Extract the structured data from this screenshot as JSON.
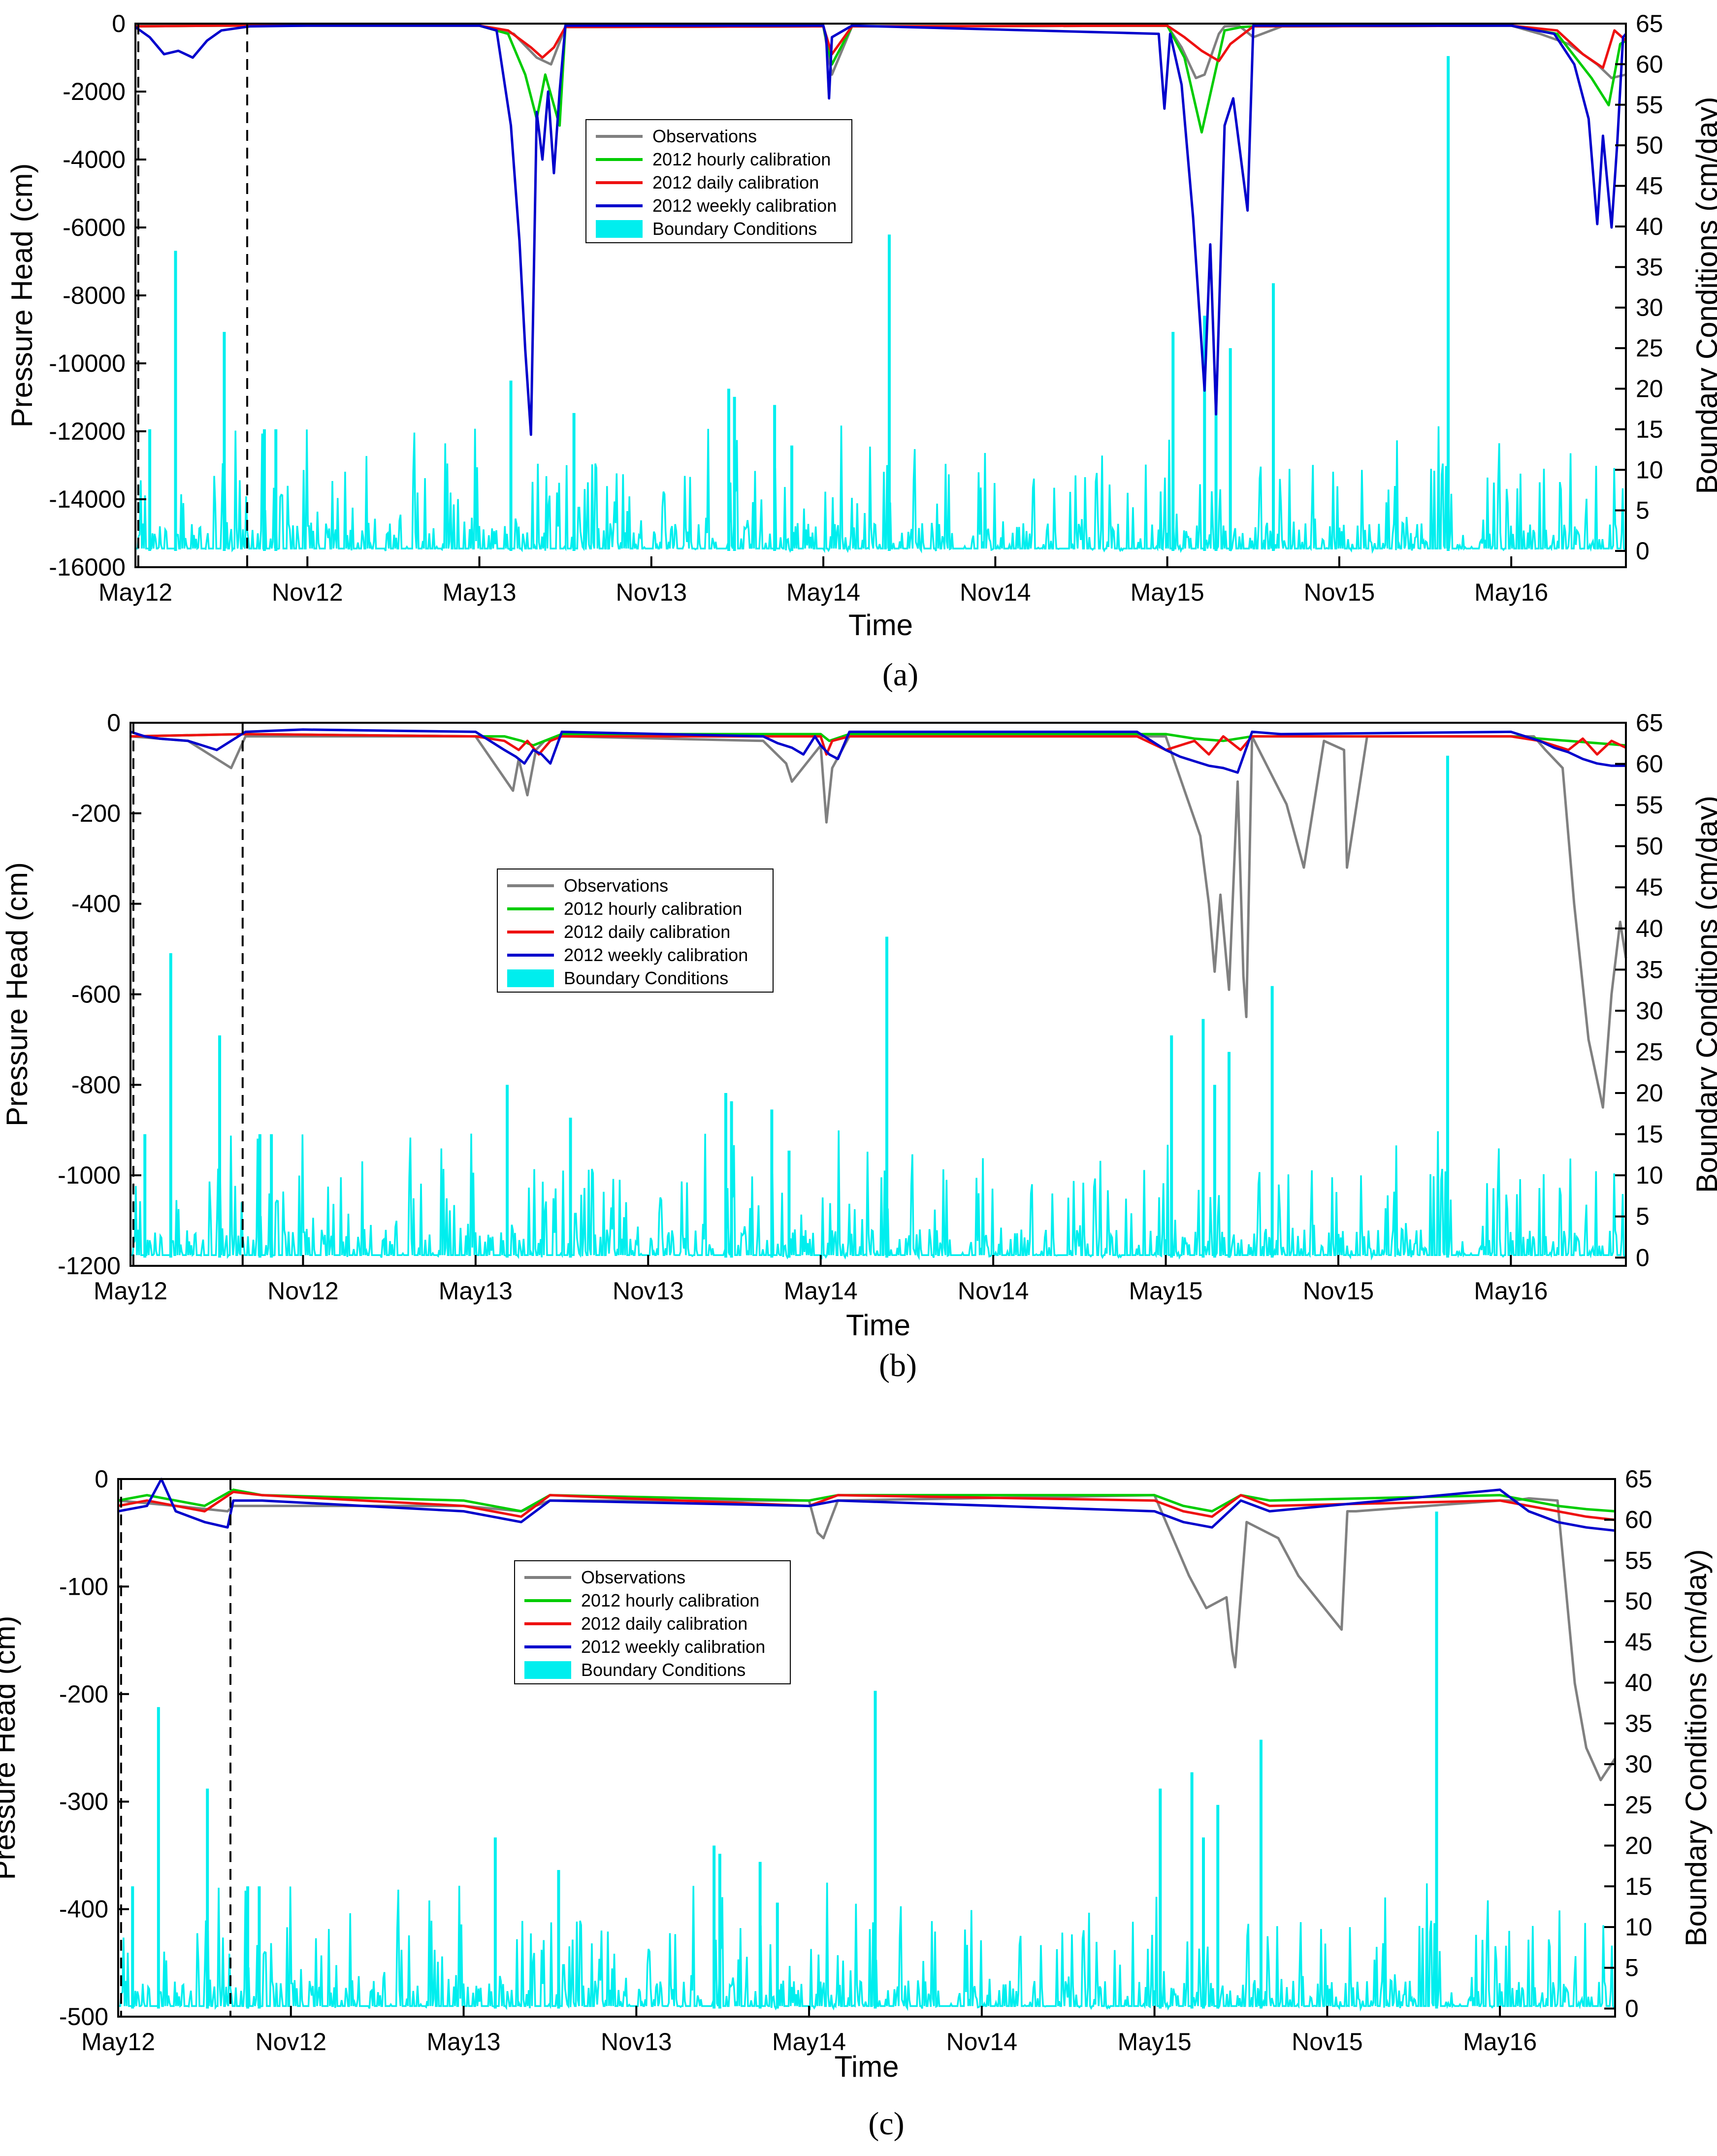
{
  "figure": {
    "panels": [
      {
        "caption": "(a)",
        "legend_title_hidden": true
      },
      {
        "caption": "(b)"
      },
      {
        "caption": "(c)"
      }
    ]
  },
  "colors": {
    "observations": "#808080",
    "hourly": "#00cc00",
    "daily": "#ee1111",
    "weekly": "#0000cc",
    "boundary": "#00eeee"
  },
  "chart_data": [
    {
      "type": "line",
      "panel": "a",
      "xlabel": "Time",
      "ylabel": "Pressure Head (cm)",
      "y2label": "Boundary Conditions (cm/day)",
      "x_ticks": [
        "May12",
        "Nov12",
        "May13",
        "Nov13",
        "May14",
        "Nov14",
        "May15",
        "Nov15",
        "May16"
      ],
      "x_range_months": [
        0,
        52
      ],
      "ylim": [
        -16000,
        0
      ],
      "y_ticks": [
        0,
        -2000,
        -4000,
        -6000,
        -8000,
        -10000,
        -12000,
        -14000,
        -16000
      ],
      "y2lim": [
        -2,
        65
      ],
      "y2_ticks": [
        0,
        5,
        10,
        15,
        20,
        25,
        30,
        35,
        40,
        45,
        50,
        55,
        60,
        65
      ],
      "calibration_window_months": [
        0.1,
        3.9
      ],
      "legend": [
        "Observations",
        "2012 hourly calibration",
        "2012 daily calibration",
        "2012 weekly calibration",
        "Boundary Conditions"
      ],
      "legend_position": "upper-center",
      "series": [
        {
          "name": "Observations",
          "x": [
            0,
            3,
            6,
            12,
            13.2,
            14,
            14.5,
            15,
            24,
            24.3,
            25,
            36,
            36.5,
            37,
            37.3,
            37.8,
            38,
            38.5,
            39,
            40,
            48,
            49,
            50,
            51,
            51.5,
            52
          ],
          "values": [
            -50,
            -50,
            -60,
            -60,
            -300,
            -1000,
            -1200,
            -100,
            -80,
            -1500,
            -80,
            -60,
            -700,
            -1600,
            -1500,
            -300,
            -80,
            -60,
            -400,
            -80,
            -60,
            -300,
            -600,
            -1200,
            -1600,
            -1500
          ]
        },
        {
          "name": "2012 hourly calibration",
          "x": [
            0,
            3,
            6,
            12,
            13,
            13.6,
            14,
            14.3,
            14.8,
            15,
            24,
            24.3,
            25,
            36,
            36.6,
            37.2,
            37.6,
            38,
            38.6,
            39,
            48,
            49.6,
            50.8,
            51.4,
            51.8,
            52
          ],
          "values": [
            -80,
            -60,
            -60,
            -60,
            -300,
            -1500,
            -2800,
            -1500,
            -3000,
            -100,
            -80,
            -1200,
            -80,
            -60,
            -1000,
            -3200,
            -1700,
            -200,
            -100,
            -80,
            -60,
            -300,
            -1600,
            -2400,
            -600,
            -500
          ]
        },
        {
          "name": "2012 daily calibration",
          "x": [
            0,
            3,
            6,
            12,
            13,
            13.8,
            14.2,
            14.6,
            15,
            24,
            24.3,
            25,
            36,
            36.6,
            37.2,
            37.8,
            38.2,
            39,
            48,
            49.6,
            50.5,
            51.2,
            51.6,
            52
          ],
          "values": [
            -80,
            -60,
            -60,
            -60,
            -200,
            -700,
            -1000,
            -700,
            -100,
            -80,
            -900,
            -80,
            -60,
            -400,
            -800,
            -1100,
            -600,
            -80,
            -60,
            -200,
            -900,
            -1300,
            -200,
            -500
          ]
        },
        {
          "name": "2012 weekly calibration",
          "x": [
            0,
            0.5,
            1,
            1.5,
            2,
            2.5,
            3,
            4,
            6,
            12,
            12.6,
            13.1,
            13.4,
            13.6,
            13.8,
            14,
            14.2,
            14.4,
            14.6,
            14.8,
            15,
            24,
            24.1,
            24.2,
            24.3,
            25,
            35.7,
            35.9,
            36.1,
            36.5,
            36.9,
            37.3,
            37.5,
            37.7,
            38,
            38.3,
            38.8,
            39,
            48,
            49.5,
            50.2,
            50.7,
            51,
            51.2,
            51.5,
            51.7,
            51.9,
            52
          ],
          "values": [
            -100,
            -400,
            -900,
            -800,
            -1000,
            -500,
            -200,
            -80,
            -60,
            -60,
            -200,
            -3000,
            -6400,
            -9600,
            -12100,
            -2600,
            -4000,
            -2000,
            -4400,
            -2000,
            -60,
            -60,
            -400,
            -2200,
            -400,
            -60,
            -300,
            -2500,
            -300,
            -1800,
            -5700,
            -10800,
            -6500,
            -11500,
            -3000,
            -2200,
            -5500,
            -60,
            -60,
            -300,
            -1200,
            -2800,
            -5900,
            -3300,
            -6000,
            -3500,
            -400,
            -300
          ]
        },
        {
          "name": "Boundary Conditions",
          "units": "cm/day",
          "peaks_x": [
            0.5,
            1.4,
            3.1,
            4.5,
            4.9,
            13.1,
            15.3,
            20.7,
            20.9,
            22.3,
            22.9,
            26.3,
            36.2,
            37.3,
            37.7,
            38.2,
            39.7,
            45.8
          ],
          "peaks_values": [
            15,
            37,
            27,
            15,
            15,
            21,
            17,
            20,
            19,
            18,
            13,
            39,
            27,
            29,
            21,
            25,
            33,
            61
          ],
          "baseline": 0.3
        }
      ]
    },
    {
      "type": "line",
      "panel": "b",
      "xlabel": "Time",
      "ylabel": "Pressure Head (cm)",
      "y2label": "Boundary Conditions (cm/day)",
      "x_ticks": [
        "May12",
        "Nov12",
        "May13",
        "Nov13",
        "May14",
        "Nov14",
        "May15",
        "Nov15",
        "May16"
      ],
      "x_range_months": [
        0,
        52
      ],
      "ylim": [
        -1200,
        0
      ],
      "y_ticks": [
        0,
        -200,
        -400,
        -600,
        -800,
        -1000,
        -1200
      ],
      "y2lim": [
        -1,
        65
      ],
      "y2_ticks": [
        0,
        5,
        10,
        15,
        20,
        25,
        30,
        35,
        40,
        45,
        50,
        55,
        60,
        65
      ],
      "calibration_window_months": [
        0.1,
        3.9
      ],
      "legend": [
        "Observations",
        "2012 hourly calibration",
        "2012 daily calibration",
        "2012 weekly calibration",
        "Boundary Conditions"
      ],
      "legend_position": "center",
      "series": [
        {
          "name": "Observations",
          "x": [
            0,
            2,
            3,
            3.5,
            4,
            12,
            13.3,
            13.5,
            13.8,
            14.1,
            14.4,
            15,
            22,
            22.8,
            23,
            24,
            24.2,
            24.4,
            25,
            36,
            37.2,
            37.5,
            37.7,
            37.9,
            38.2,
            38.5,
            38.7,
            38.8,
            39,
            40.2,
            40.8,
            41.5,
            42.2,
            42.3,
            43,
            48,
            48.8,
            49.2,
            49.8,
            50.2,
            50.7,
            51.2,
            51.5,
            51.8,
            52
          ],
          "values": [
            -30,
            -40,
            -80,
            -100,
            -30,
            -30,
            -150,
            -80,
            -160,
            -60,
            -40,
            -30,
            -40,
            -90,
            -130,
            -50,
            -220,
            -100,
            -30,
            -30,
            -250,
            -400,
            -550,
            -380,
            -590,
            -130,
            -560,
            -650,
            -30,
            -180,
            -320,
            -40,
            -60,
            -320,
            -30,
            -30,
            -30,
            -60,
            -100,
            -400,
            -700,
            -850,
            -600,
            -440,
            -520
          ]
        },
        {
          "name": "2012 hourly calibration",
          "x": [
            0,
            4,
            12,
            13,
            13.6,
            14,
            15,
            24,
            24.3,
            25,
            36,
            37,
            38,
            39,
            40,
            48,
            50,
            51,
            52
          ],
          "values": [
            -30,
            -25,
            -30,
            -30,
            -40,
            -50,
            -25,
            -25,
            -40,
            -25,
            -25,
            -35,
            -40,
            -30,
            -30,
            -30,
            -40,
            -45,
            -50
          ]
        },
        {
          "name": "2012 daily calibration",
          "x": [
            0,
            4,
            12,
            13,
            13.5,
            13.8,
            14.2,
            14.6,
            15,
            24,
            24.2,
            24.4,
            25,
            35,
            36,
            37,
            37.5,
            38,
            38.6,
            39,
            48,
            49,
            50,
            50.5,
            51,
            51.5,
            52
          ],
          "values": [
            -30,
            -25,
            -30,
            -40,
            -60,
            -40,
            -70,
            -40,
            -30,
            -30,
            -70,
            -40,
            -30,
            -30,
            -60,
            -40,
            -70,
            -30,
            -60,
            -30,
            -30,
            -40,
            -60,
            -35,
            -70,
            -40,
            -55
          ]
        },
        {
          "name": "2012 weekly calibration",
          "x": [
            0,
            0.5,
            1,
            2,
            3,
            4,
            6,
            12,
            12.5,
            13,
            13.4,
            13.7,
            14,
            14.3,
            14.6,
            15,
            22,
            22.5,
            23,
            23.4,
            23.8,
            24,
            24.3,
            24.6,
            25,
            35,
            35.5,
            36,
            36.5,
            37,
            37.5,
            38,
            38.5,
            39,
            40,
            48,
            48.5,
            49,
            49.5,
            50,
            50.5,
            51,
            51.5,
            52
          ],
          "values": [
            -20,
            -30,
            -35,
            -40,
            -60,
            -20,
            -15,
            -20,
            -40,
            -60,
            -75,
            -90,
            -60,
            -70,
            -90,
            -20,
            -30,
            -45,
            -55,
            -70,
            -30,
            -50,
            -70,
            -80,
            -20,
            -20,
            -40,
            -60,
            -75,
            -85,
            -95,
            -100,
            -110,
            -20,
            -25,
            -20,
            -30,
            -40,
            -55,
            -65,
            -80,
            -90,
            -95,
            -95
          ]
        },
        {
          "name": "Boundary Conditions",
          "units": "cm/day",
          "peaks_x": [
            0.5,
            1.4,
            3.1,
            4.5,
            4.9,
            13.1,
            15.3,
            20.7,
            20.9,
            22.3,
            22.9,
            26.3,
            36.2,
            37.3,
            37.7,
            38.2,
            39.7,
            45.8
          ],
          "peaks_values": [
            15,
            37,
            27,
            15,
            15,
            21,
            17,
            20,
            19,
            18,
            13,
            39,
            27,
            29,
            21,
            25,
            33,
            61
          ],
          "baseline": 0.3
        }
      ]
    },
    {
      "type": "line",
      "panel": "c",
      "xlabel": "Time",
      "ylabel": "Pressure Head (cm)",
      "y2label": "Boundary Conditions (cm/day)",
      "x_ticks": [
        "May12",
        "Nov12",
        "May13",
        "Nov13",
        "May14",
        "Nov14",
        "May15",
        "Nov15",
        "May16"
      ],
      "x_range_months": [
        0,
        52
      ],
      "ylim": [
        -500,
        0
      ],
      "y_ticks": [
        0,
        -100,
        -200,
        -300,
        -400,
        -500
      ],
      "y2lim": [
        -1,
        65
      ],
      "y2_ticks": [
        0,
        5,
        10,
        15,
        20,
        25,
        30,
        35,
        40,
        45,
        50,
        55,
        60,
        65
      ],
      "calibration_window_months": [
        0.1,
        3.9
      ],
      "legend": [
        "Observations",
        "2012 hourly calibration",
        "2012 daily calibration",
        "2012 weekly calibration",
        "Boundary Conditions"
      ],
      "legend_position": "center",
      "series": [
        {
          "name": "Observations",
          "x": [
            0,
            2,
            3.8,
            4,
            12,
            14,
            15,
            24,
            24.3,
            24.5,
            25,
            36,
            37.2,
            37.8,
            38.5,
            38.7,
            38.8,
            39.2,
            40.3,
            41,
            42.5,
            42.7,
            43,
            48,
            48.5,
            49,
            50,
            50.6,
            51,
            51.5,
            52
          ],
          "values": [
            -20,
            -25,
            -30,
            -25,
            -25,
            -30,
            -20,
            -20,
            -50,
            -55,
            -20,
            -15,
            -90,
            -120,
            -110,
            -160,
            -175,
            -40,
            -55,
            -90,
            -140,
            -30,
            -30,
            -20,
            -20,
            -18,
            -20,
            -190,
            -250,
            -280,
            -260
          ]
        },
        {
          "name": "2012 hourly calibration",
          "x": [
            0,
            1,
            2,
            3,
            4,
            5,
            12,
            13,
            14,
            15,
            24,
            25,
            36,
            37,
            38,
            39,
            40,
            48,
            49,
            50,
            51,
            52
          ],
          "values": [
            -20,
            -15,
            -20,
            -25,
            -10,
            -15,
            -20,
            -25,
            -30,
            -15,
            -20,
            -15,
            -15,
            -25,
            -30,
            -15,
            -20,
            -15,
            -20,
            -25,
            -28,
            -30
          ]
        },
        {
          "name": "2012 daily calibration",
          "x": [
            0,
            1,
            2,
            3,
            4,
            5,
            12,
            13,
            14,
            15,
            24,
            25,
            36,
            37,
            38,
            39,
            40,
            48,
            49,
            50,
            51,
            52
          ],
          "values": [
            -25,
            -20,
            -25,
            -30,
            -12,
            -15,
            -25,
            -30,
            -35,
            -15,
            -25,
            -15,
            -20,
            -30,
            -35,
            -15,
            -25,
            -20,
            -25,
            -30,
            -35,
            -38
          ]
        },
        {
          "name": "2012 weekly calibration",
          "x": [
            0,
            1,
            1.5,
            2,
            3,
            3.8,
            4,
            5,
            12,
            13,
            14,
            15,
            24,
            25,
            36,
            37,
            38,
            39,
            40,
            48,
            49,
            50,
            51,
            52
          ],
          "values": [
            -30,
            -25,
            0,
            -30,
            -40,
            -45,
            -20,
            -20,
            -30,
            -35,
            -40,
            -20,
            -25,
            -20,
            -30,
            -40,
            -45,
            -20,
            -30,
            -10,
            -30,
            -40,
            -45,
            -48
          ]
        },
        {
          "name": "Boundary Conditions",
          "units": "cm/day",
          "peaks_x": [
            0.5,
            1.4,
            3.1,
            4.5,
            4.9,
            13.1,
            15.3,
            20.7,
            20.9,
            22.3,
            22.9,
            26.3,
            36.2,
            37.3,
            37.7,
            38.2,
            39.7,
            45.8
          ],
          "peaks_values": [
            15,
            37,
            27,
            15,
            15,
            21,
            17,
            20,
            19,
            18,
            13,
            39,
            27,
            29,
            21,
            25,
            33,
            61
          ],
          "baseline": 0.3
        }
      ]
    }
  ]
}
